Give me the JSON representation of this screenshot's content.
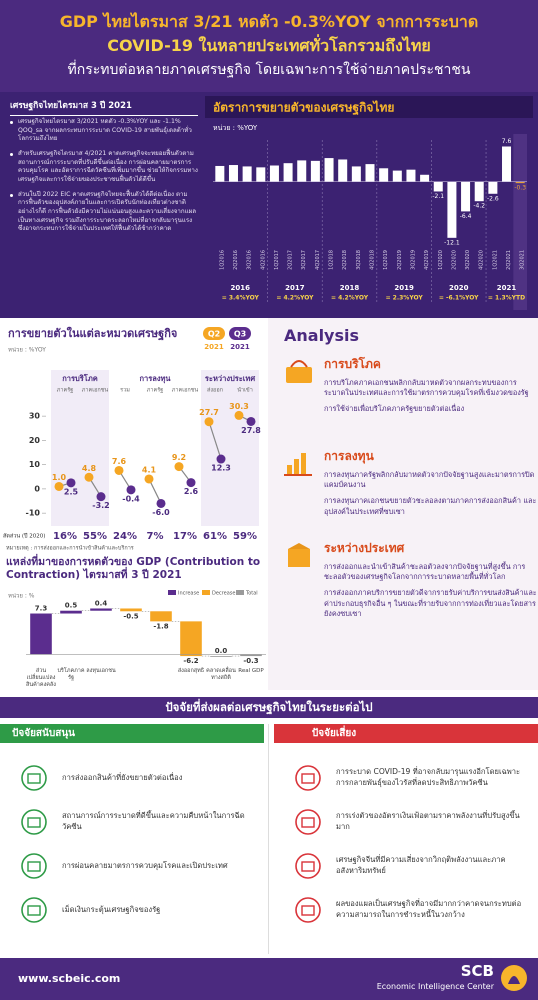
{
  "header": {
    "line1": "GDP ไทยไตรมาส 3/21 หดตัว -0.3%YOY จากการระบาด",
    "line2": "COVID-19 ในหลายประเทศทั่วโลกรวมถึงไทย",
    "line3": "ที่กระทบต่อหลายภาคเศรษฐกิจ โดยเฉพาะการใช้จ่ายภาคประชาชน"
  },
  "summary": {
    "title": "เศรษฐกิจไทยไตรมาส 3 ปี 2021",
    "bullets": [
      "เศรษฐกิจไทยไตรมาส 3/2021 หดตัว -0.3%YOY และ -1.1% QOQ_sa จากผลกระทบการระบาด COVID-19 สายพันธุ์เดลต้าทั่วโลกรวมถึงไทย",
      "สำหรับเศรษฐกิจไตรมาส 4/2021 คาดเศรษฐกิจจะทยอยฟื้นตัวตามสถานการณ์การระบาดที่ปรับดีขึ้นต่อเนื่อง การผ่อนคลายมาตรการควบคุมโรค และอัตราการฉีดวัคซีนที่เพิ่มมากขึ้น ช่วยให้กิจกรรมทางเศรษฐกิจและการใช้จ่ายของประชาชนฟื้นตัวได้ดีขึ้น",
      "ส่วนในปี 2022 EIC คาดเศรษฐกิจไทยจะฟื้นตัวได้ดีต่อเนื่อง ตามการฟื้นตัวของอุปสงค์ภายในและการเปิดรับนักท่องเที่ยวต่างชาติ อย่างไรก็ดี การฟื้นตัวยังมีความไม่แน่นอนสูงและความเสี่ยงจากแผลเป็นทางเศรษฐกิจ รวมถึงการระบาดระลอกใหม่ที่อาจกลับมารุนแรง ซึ่งอาจกระทบการใช้จ่ายในประเทศให้ฟื้นตัวได้ช้ากว่าคาด"
    ]
  },
  "chart_data": [
    {
      "type": "bar",
      "title": "อัตราการขยายตัวของเศรษฐกิจไทย",
      "unit_label": "หน่วย : %YOY",
      "categories": [
        "1Q2016",
        "2Q2016",
        "3Q2016",
        "4Q2016",
        "1Q2017",
        "2Q2017",
        "3Q2017",
        "4Q2017",
        "1Q2018",
        "2Q2018",
        "3Q2018",
        "4Q2018",
        "1Q2019",
        "2Q2019",
        "3Q2019",
        "4Q2019",
        "1Q2020",
        "2Q2020",
        "3Q2020",
        "4Q2020",
        "1Q2021",
        "2Q2021",
        "3Q2021"
      ],
      "values": [
        3.4,
        3.6,
        3.3,
        3.1,
        3.5,
        4.0,
        4.6,
        4.5,
        5.1,
        4.8,
        3.3,
        3.8,
        2.9,
        2.4,
        2.6,
        1.5,
        -2.1,
        -12.1,
        -6.4,
        -4.2,
        -2.6,
        7.6,
        -0.3
      ],
      "value_labels": [
        null,
        null,
        null,
        null,
        null,
        null,
        null,
        null,
        null,
        null,
        null,
        null,
        null,
        null,
        null,
        null,
        "-2.1",
        "-12.1",
        "-6.4",
        "-4.2",
        "-2.6",
        "7.6",
        "-0.3"
      ],
      "groups": [
        {
          "label": "2016",
          "note": "= 3.4%YOY",
          "count": 4
        },
        {
          "label": "2017",
          "note": "= 4.2%YOY",
          "count": 4
        },
        {
          "label": "2018",
          "note": "= 4.2%YOY",
          "count": 4
        },
        {
          "label": "2019",
          "note": "= 2.3%YOY",
          "count": 4
        },
        {
          "label": "2020",
          "note": "= -6.1%YOY",
          "count": 4
        },
        {
          "label": "2021",
          "note": "= 1.3%YTD",
          "count": 3
        }
      ],
      "color": "#ffffff",
      "highlight_color": "#e8a13a",
      "ylim": [
        -13,
        9
      ]
    },
    {
      "type": "slope",
      "title": "การขยายตัวในแต่ละหมวดเศรษฐกิจ",
      "unit_label": "หน่วย : %YOY",
      "legend_year": "2021",
      "categories": [
        "ภาครัฐ",
        "ภาคเอกชน",
        "รวม",
        "ภาครัฐ",
        "ภาคเอกชน",
        "ส่งออก",
        "นำเข้า"
      ],
      "groups": [
        {
          "label": "การบริโภค",
          "count": 2
        },
        {
          "label": "การลงทุน",
          "count": 3
        },
        {
          "label": "ระหว่างประเทศ",
          "count": 2
        }
      ],
      "series": [
        {
          "name": "Q2",
          "color": "#f5a623",
          "values": [
            1.0,
            4.8,
            7.6,
            4.1,
            9.2,
            27.7,
            30.3
          ],
          "value_labels": [
            "1.0",
            "4.8",
            "7.6",
            "4.1",
            "9.2",
            "27.7",
            "30.3"
          ]
        },
        {
          "name": "Q3",
          "color": "#5b2d8e",
          "values": [
            2.5,
            -3.2,
            -0.4,
            -6.0,
            2.6,
            12.3,
            27.8
          ],
          "value_labels": [
            "2.5",
            "-3.2",
            "-0.4",
            "-6.0",
            "2.6",
            "12.3",
            "27.8"
          ]
        }
      ],
      "ylim": [
        -12,
        35
      ],
      "yticks": [
        -10,
        0,
        10,
        20,
        30
      ],
      "share_title": "สัดส่วน (ปี 2020)",
      "shares": [
        16,
        55,
        24,
        7,
        17,
        61,
        59
      ],
      "share_labels": [
        "16%",
        "55%",
        "24%",
        "7%",
        "17%",
        "61%",
        "59%"
      ],
      "note": "หมายเหตุ : การส่งออกและการนำเข้าสินค้าและบริการ"
    },
    {
      "type": "waterfall",
      "title": "แหล่งที่มาของการหดตัวของ GDP (Contribution to Contraction) ไตรมาสที่ 3 ปี 2021",
      "unit_label": "หน่วย : %",
      "legend": [
        {
          "name": "Increase",
          "color": "#5b2d8e"
        },
        {
          "name": "Decrease",
          "color": "#f5a623"
        },
        {
          "name": "Total",
          "color": "#9a9a9a"
        }
      ],
      "categories": [
        "ส่วนเปลี่ยนแปลงสินค้าคงคลัง",
        "บริโภคภาครัฐ",
        "ลงทุนเอกชน",
        null,
        null,
        "ส่งออกสุทธิ",
        "คลาดเคลื่อนทางสถิติ",
        "Real GDP"
      ],
      "values": [
        7.3,
        0.5,
        0.4,
        -0.5,
        -1.8,
        -6.2,
        0,
        -0.3
      ],
      "value_labels": [
        "7.3",
        "0.5",
        "0.4",
        "-0.5",
        "-1.8",
        "-6.2",
        "0.0",
        "-0.3"
      ],
      "ylim": [
        -1,
        9
      ]
    }
  ],
  "analysis": {
    "title": "Analysis",
    "sections": [
      {
        "heading": "การบริโภค",
        "points": [
          "การบริโภคภาคเอกชนพลิกกลับมาหดตัวจากผลกระทบของการระบาดในประเทศและการใช้มาตรการควบคุมโรคที่เข้มงวดของรัฐ",
          "การใช้จ่ายเพื่อบริโภคภาครัฐขยายตัวต่อเนื่อง"
        ]
      },
      {
        "heading": "การลงทุน",
        "points": [
          "การลงทุนภาครัฐพลิกกลับมาหดตัวจากปัจจัยฐานสูงและมาตรการปิดแคมป์คนงาน",
          "การลงทุนภาคเอกชนขยายตัวชะลอลงตามภาคการส่งออกสินค้า และอุปสงค์ในประเทศที่ซบเซา"
        ]
      },
      {
        "heading": "ระหว่างประเทศ",
        "points": [
          "การส่งออกและนำเข้าสินค้าชะลอตัวลงจากปัจจัยฐานที่สูงขึ้น การชะลอตัวของเศรษฐกิจโลกจากการระบาดหลายพื้นที่ทั่วโลก",
          "การส่งออกภาคบริการขยายตัวดีจากรายรับค่าบริการขนส่งสินค้าและค่าประกอบธุรกิจอื่น ๆ ในขณะที่รายรับจากการท่องเที่ยวและโดยสารยังคงซบเซา"
        ]
      }
    ]
  },
  "outlook": {
    "title": "ปัจจัยที่ส่งผลต่อเศรษฐกิจไทยในระยะต่อไป",
    "support": {
      "heading": "ปัจจัยสนับสนุน",
      "items": [
        "การส่งออกสินค้าที่ยังขยายตัวต่อเนื่อง",
        "สถานการณ์การระบาดที่ดีขึ้นและความคืบหน้าในการฉีดวัคซีน",
        "การผ่อนคลายมาตรการควบคุมโรคและเปิดประเทศ",
        "เม็ดเงินกระตุ้นเศรษฐกิจของรัฐ"
      ]
    },
    "risk": {
      "heading": "ปัจจัยเสี่ยง",
      "items": [
        "การระบาด COVID-19 ที่อาจกลับมารุนแรงอีกโดยเฉพาะการกลายพันธุ์ของไวรัสที่ลดประสิทธิภาพวัคซีน",
        "การเร่งตัวของอัตราเงินเฟ้อตามราคาพลังงานที่ปรับสูงขึ้นมาก",
        "เศรษฐกิจจีนที่มีความเสี่ยงจากวิกฤติพลังงานและภาคอสังหาริมทรัพย์",
        "ผลของแผลเป็นเศรษฐกิจที่อาจมีมากกว่าคาดจนกระทบต่อความสามารถในการชำระหนี้ในวงกว้าง"
      ]
    }
  },
  "footer": {
    "url": "www.scbeic.com",
    "brand": "SCB",
    "unit": "Economic Intelligence Center"
  }
}
